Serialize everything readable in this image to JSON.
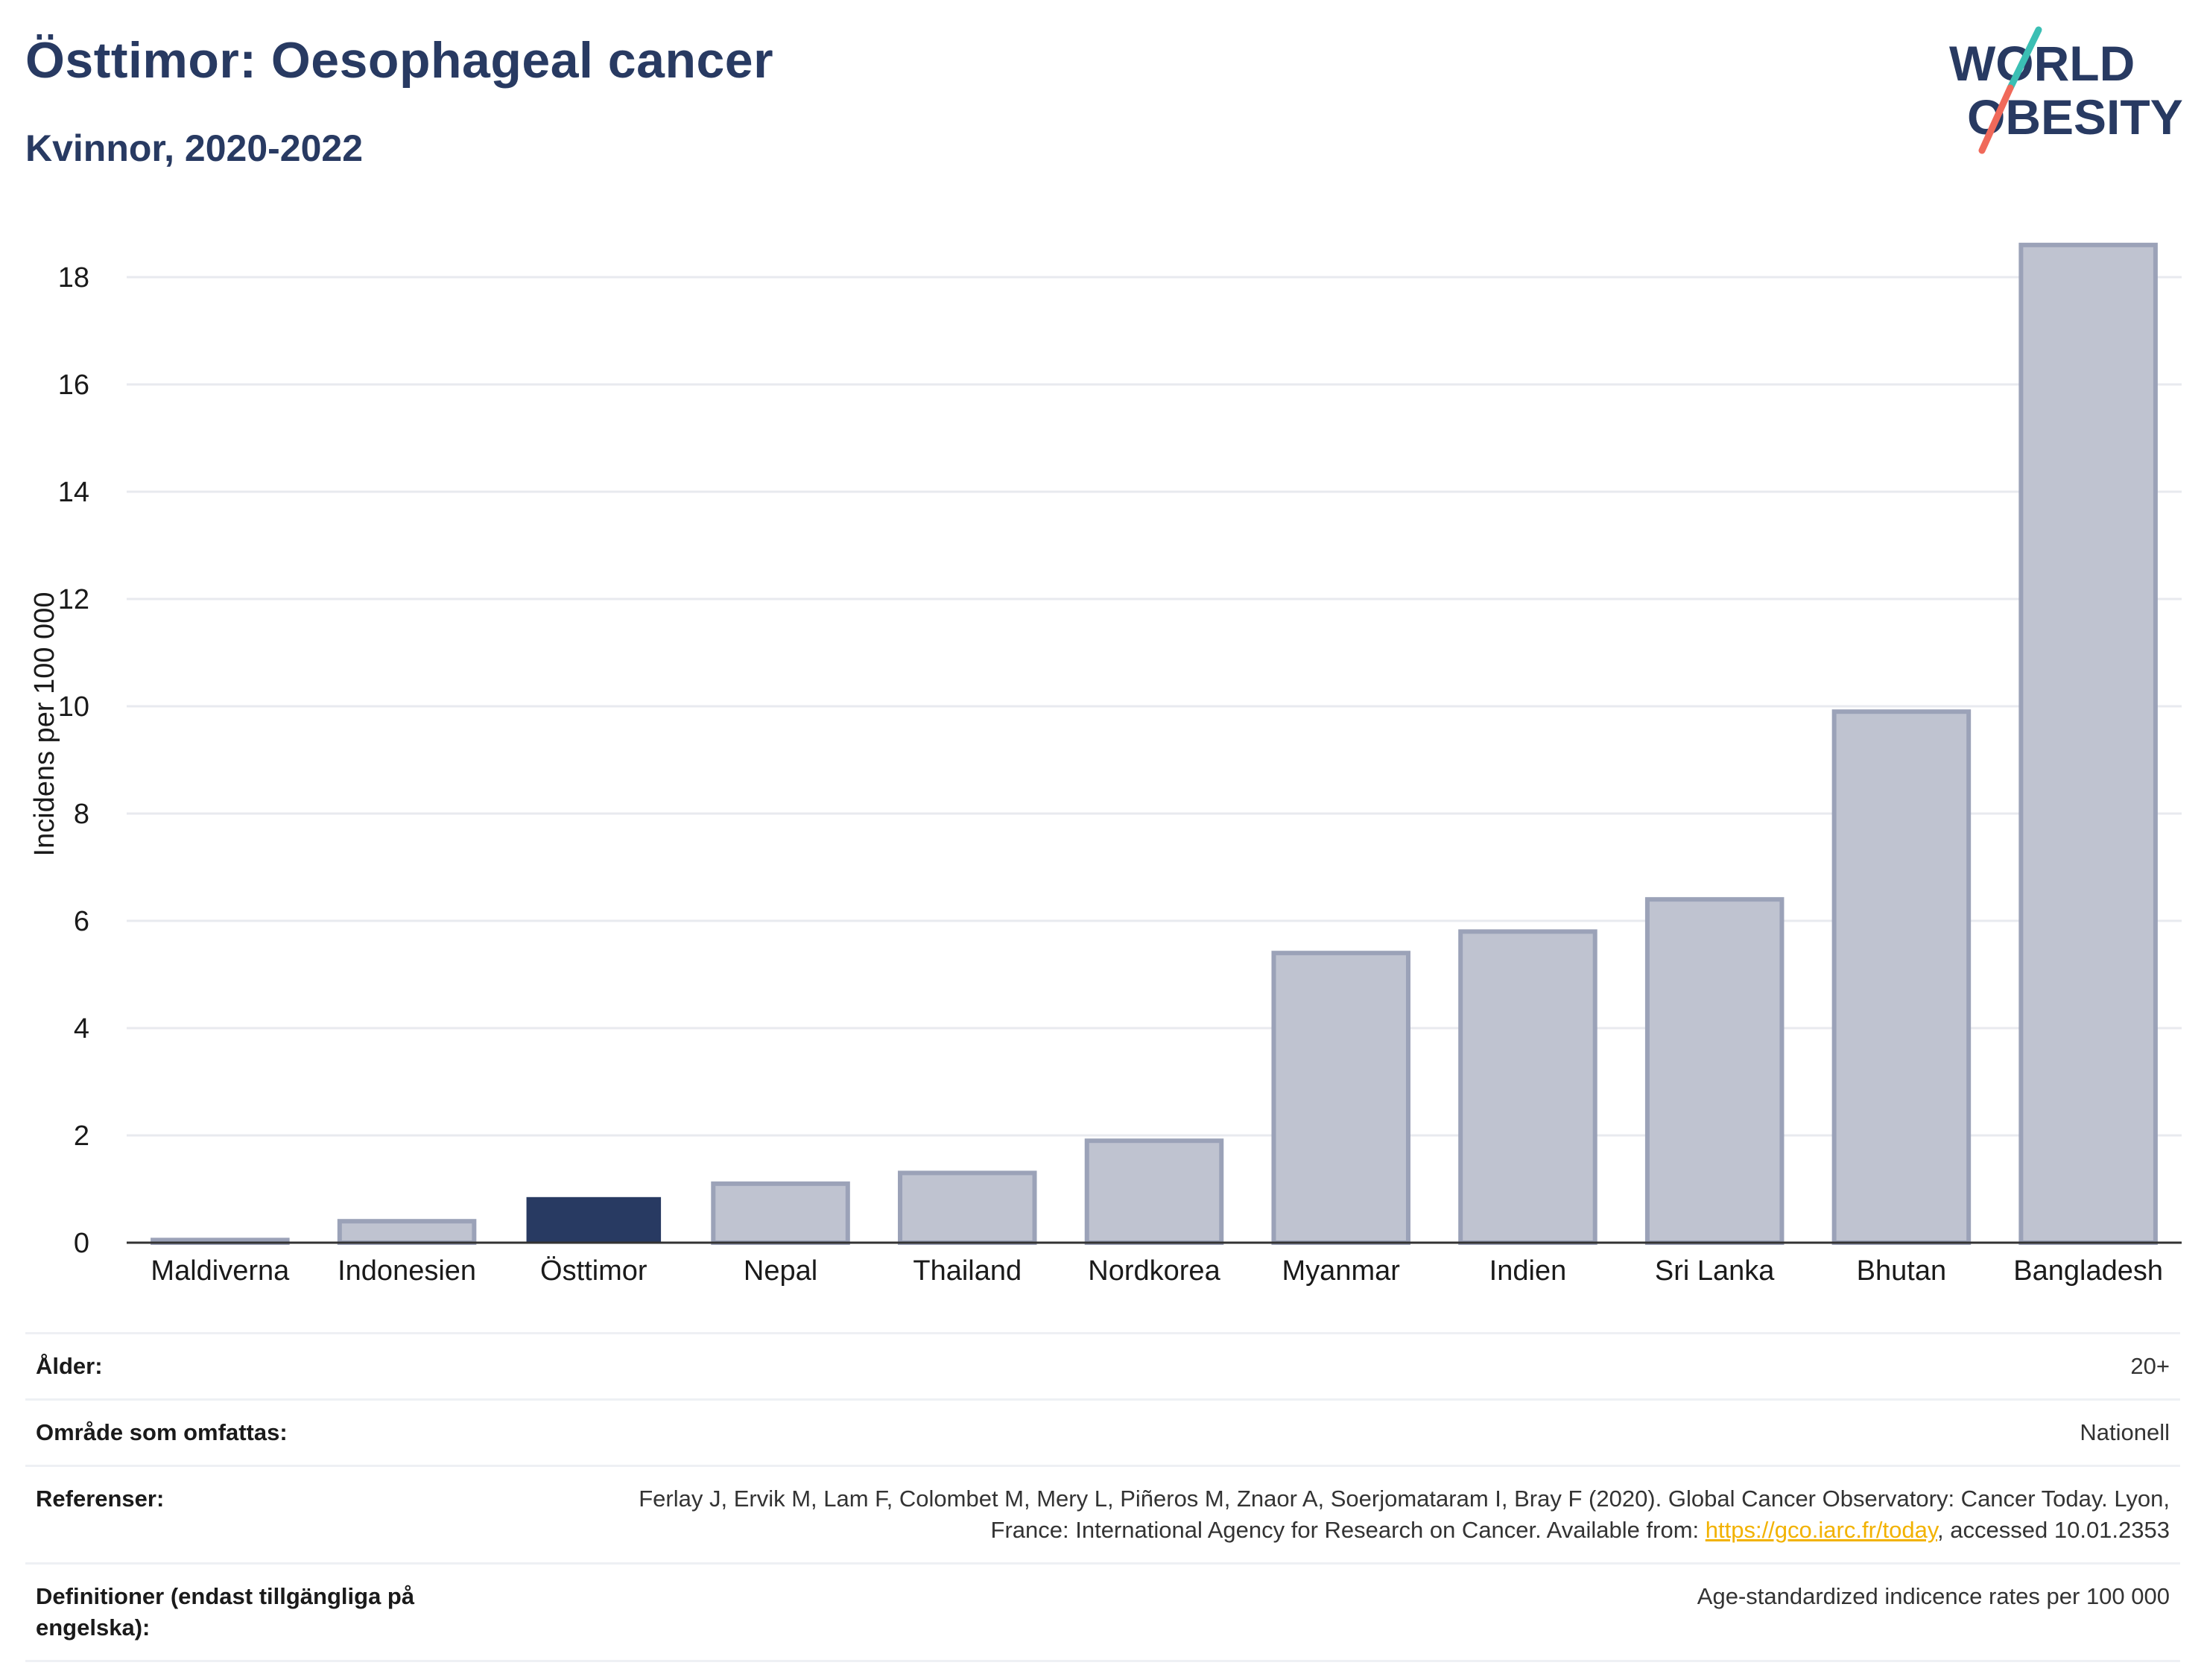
{
  "header": {
    "title": "Östtimor: Oesophageal cancer",
    "subtitle": "Kvinnor, 2020-2022"
  },
  "logo": {
    "line1": "WORLD",
    "line2": "OBESITY"
  },
  "chart_data": {
    "type": "bar",
    "ylabel": "Incidens per 100 000",
    "ylim": [
      0,
      19
    ],
    "yticks": [
      0,
      2,
      4,
      6,
      8,
      10,
      12,
      14,
      16,
      18
    ],
    "grid": true,
    "categories": [
      "Maldiverna",
      "Indonesien",
      "Östtimor",
      "Nepal",
      "Thailand",
      "Nordkorea",
      "Myanmar",
      "Indien",
      "Sri Lanka",
      "Bhutan",
      "Bangladesh"
    ],
    "values": [
      0.05,
      0.4,
      0.85,
      1.1,
      1.3,
      1.9,
      5.4,
      5.8,
      6.4,
      9.9,
      18.6
    ],
    "highlight": "Östtimor",
    "colors": {
      "highlight": "#283a62",
      "other_fill": "#bfc3d0",
      "other_stroke": "#9ba2b8",
      "grid": "#e8eaef",
      "axis": "#333333"
    }
  },
  "meta": {
    "rows": [
      {
        "label": "Ålder:",
        "value": "20+"
      },
      {
        "label": "Område som omfattas:",
        "value": "Nationell"
      },
      {
        "label": "Referenser:",
        "value_pre": "Ferlay J, Ervik M, Lam F, Colombet M, Mery L, Piñeros M, Znaor A, Soerjomataram I, Bray F (2020). Global Cancer Observatory: Cancer Today. Lyon, France: International Agency for Research on Cancer. Available from: ",
        "link": "https://gco.iarc.fr/today",
        "value_post": ", accessed 10.01.2353"
      },
      {
        "label": "Definitioner (endast tillgängliga på engelska):",
        "value": "Age-standardized indicence rates per 100 000"
      }
    ]
  }
}
